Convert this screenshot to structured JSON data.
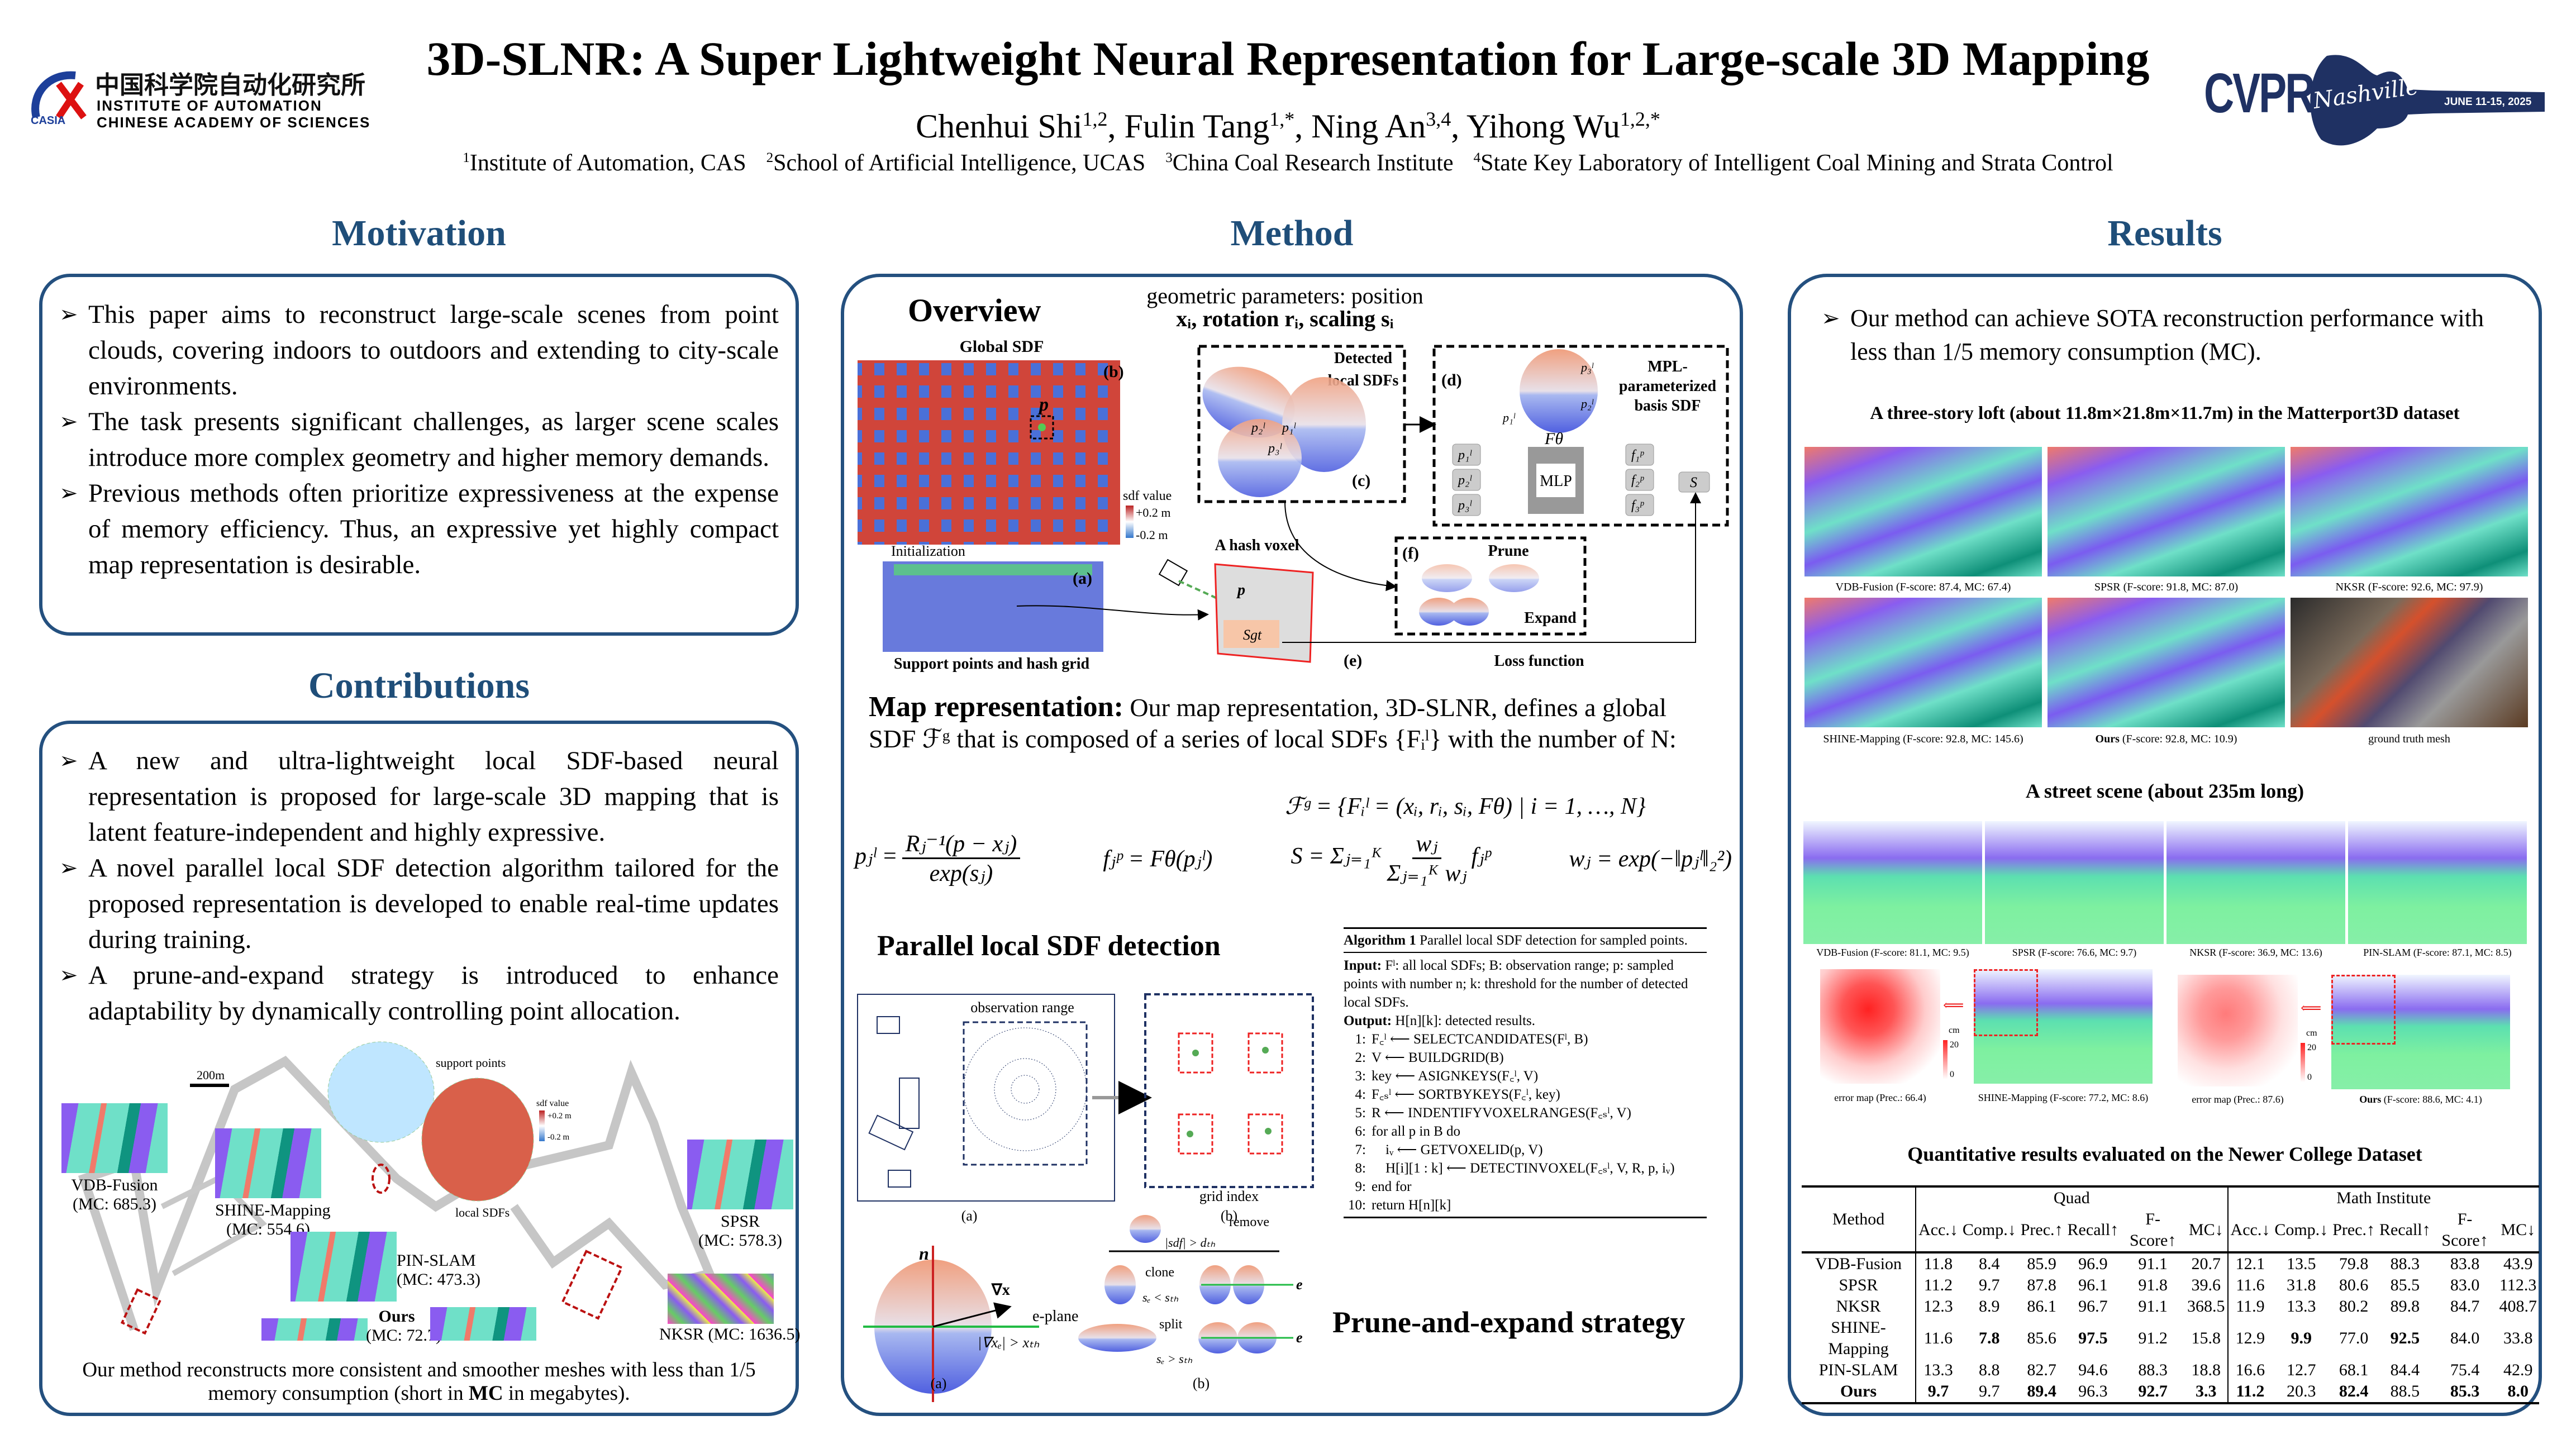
{
  "header": {
    "title": "3D-SLNR: A Super Lightweight Neural Representation for Large-scale 3D Mapping",
    "authors": [
      {
        "name": "Chenhui Shi",
        "sup": "1,2",
        "sep": ", "
      },
      {
        "name": "Fulin Tang",
        "sup": "1,*",
        "sep": ", "
      },
      {
        "name": "Ning An",
        "sup": "3,4",
        "sep": ", "
      },
      {
        "name": "Yihong Wu",
        "sup": "1,2,*",
        "sep": ""
      }
    ],
    "affiliations": [
      {
        "sup": "1",
        "text": "Institute of Automation, CAS"
      },
      {
        "sup": "2",
        "text": "School of Artificial Intelligence, UCAS"
      },
      {
        "sup": "3",
        "text": "China Coal Research Institute"
      },
      {
        "sup": "4",
        "text": "State Key Laboratory of Intelligent Coal Mining and Strata Control"
      }
    ],
    "casia_logo": {
      "cn": "中国科学院自动化研究所",
      "en1": "INSTITUTE OF AUTOMATION",
      "en2": "CHINESE ACADEMY OF SCIENCES",
      "mark": "CASIA"
    },
    "cvpr_logo": {
      "word": "CVPR",
      "script": "Nashville",
      "date": "JUNE 11-15, 2025"
    }
  },
  "motivation": {
    "heading": "Motivation",
    "bullets": [
      "This paper aims to reconstruct large-scale scenes from point clouds, covering indoors to outdoors and extending to city-scale environments.",
      "The task presents significant challenges, as larger scene scales introduce more complex geometry and higher memory demands.",
      "Previous methods often prioritize expressiveness at the expense of memory efficiency. Thus, an expressive yet highly compact map representation is desirable."
    ]
  },
  "contributions": {
    "heading": "Contributions",
    "bullets": [
      "A new and ultra-lightweight local SDF-based neural representation is proposed for large-scale 3D mapping that is latent feature-independent and highly expressive.",
      "A novel parallel local SDF detection algorithm tailored for the proposed representation is developed to enable real-time updates during training.",
      "A prune-and-expand strategy is introduced to enhance adaptability by dynamically controlling point allocation."
    ],
    "figure": {
      "scale": "200m",
      "support_points": "support points",
      "local_sdfs": "local SDFs",
      "sdf_value": "sdf value",
      "sdf_max": "+0.2 m",
      "sdf_min": "-0.2 m",
      "insets": [
        {
          "name": "VDB-Fusion",
          "mc": "(MC: 685.3)"
        },
        {
          "name": "SHINE-Mapping",
          "mc": "(MC: 554.6)"
        },
        {
          "name": "PIN-SLAM",
          "mc": "(MC: 473.3)"
        },
        {
          "name": "Ours",
          "mc": "(MC: 72.7)"
        },
        {
          "name": "SPSR",
          "mc": "(MC: 578.3)"
        },
        {
          "name": "NKSR",
          "mc": "(MC: 1636.5)"
        }
      ]
    },
    "caption_pre": "Our method reconstructs more consistent and smoother meshes with less than 1/5 memory consumption (short in ",
    "caption_bold": "MC",
    "caption_post": " in megabytes)."
  },
  "method": {
    "heading": "Method",
    "overview": {
      "title": "Overview",
      "params_line1": "geometric parameters: position",
      "params_line2": "xᵢ, rotation rᵢ, scaling sᵢ",
      "global_sdf": "Global SDF",
      "b": "(b)",
      "a": "(a)",
      "c": "(c)",
      "d": "(d)",
      "e": "(e)",
      "f": "(f)",
      "p": "p",
      "detected1": "Detected",
      "detected2": "local SDFs",
      "mpl1": "MPL-",
      "mpl2": "parameterized",
      "mpl3": "basis SDF",
      "p1": "p₁ˡ",
      "p2": "p₂ˡ",
      "p3": "p₃ˡ",
      "f1": "f₁ᵖ",
      "f2": "f₂ᵖ",
      "f3": "f₃ᵖ",
      "ftheta": "Fθ",
      "mlp": "MLP",
      "s": "S",
      "sgt": "Sgt",
      "sdf_value": "sdf value",
      "sdf_max": "+0.2 m",
      "sdf_min": "-0.2 m",
      "hash_voxel": "A hash voxel",
      "initialization": "Initialization",
      "support": "Support points and hash grid",
      "prune": "Prune",
      "expand": "Expand",
      "loss": "Loss function"
    },
    "map_rep": {
      "label": "Map representation:",
      "text": " Our map representation, 3D-SLNR, defines a global SDF ℱᵍ that is composed of a series of local SDFs {Fᵢˡ} with the number of N:",
      "eq_main": "ℱᵍ = {Fᵢˡ = (xᵢ, rᵢ, sᵢ, Fθ) | i = 1, …, N}",
      "eq_p_lhs": "pⱼˡ =",
      "eq_p_num": "Rⱼ⁻¹(p − xⱼ)",
      "eq_p_den": "exp(sⱼ)",
      "eq_f": "fⱼᵖ = Fθ(pⱼˡ)",
      "eq_s_lhs": "S = Σⱼ₌₁ᴷ",
      "eq_s_num": "wⱼ",
      "eq_s_den": "Σⱼ₌₁ᴷ wⱼ",
      "eq_s_tail": "fⱼᵖ",
      "eq_w": "wⱼ = exp(−‖pⱼˡ‖₂²)"
    },
    "parallel": {
      "title": "Parallel local SDF detection",
      "obs_range": "observation range",
      "grid_index": "grid index",
      "a": "(a)",
      "b": "(b)"
    },
    "algorithm": {
      "title_bold": "Algorithm 1",
      "title": " Parallel local SDF detection for sampled points.",
      "input_label": "Input:",
      "input": " Fˡ: all local SDFs; B: observation range; p: sampled points with number n; k: threshold for the number of detected local SDFs.",
      "output_label": "Output:",
      "output": " H[n][k]: detected results.",
      "lines": [
        {
          "n": "1:",
          "t": "F꜀ˡ ⟵ SELECTCANDIDATES(Fˡ, B)"
        },
        {
          "n": "2:",
          "t": "V ⟵ BUILDGRID(B)"
        },
        {
          "n": "3:",
          "t": "key ⟵ ASIGNKEYS(F꜀ˡ, V)"
        },
        {
          "n": "4:",
          "t": "F꜀ₛˡ ⟵ SORTBYKEYS(F꜀ˡ, key)"
        },
        {
          "n": "5:",
          "t": "R ⟵ INDENTIFYVOXELRANGES(F꜀ₛˡ, V)"
        },
        {
          "n": "6:",
          "t": "for all p in B do"
        },
        {
          "n": "7:",
          "t": "    iᵥ ⟵ GETVOXELID(p, V)"
        },
        {
          "n": "8:",
          "t": "    H[i][1 : k] ⟵ DETECTINVOXEL(F꜀ₛˡ, V, R, p, iᵥ)"
        },
        {
          "n": "9:",
          "t": "end for"
        },
        {
          "n": "10:",
          "t": "return H[n][k]"
        }
      ]
    },
    "prune": {
      "title": "Prune-and-expand strategy",
      "n": "n",
      "grad_x": "∇x",
      "e_plane": "e-plane",
      "grad_cond": "|∇xₑ| > xₜₕ",
      "remove": "remove",
      "sdf_cond": "|sdf| > dₜₕ",
      "clone": "clone",
      "clone_cond": "sₑ < sₜₕ",
      "split": "split",
      "split_cond": "sₑ > sₜₕ",
      "e": "e",
      "a": "(a)",
      "b": "(b)"
    }
  },
  "results": {
    "heading": "Results",
    "bullet": "Our method can achieve SOTA reconstruction performance with less than 1/5 memory consumption (MC).",
    "matterport": {
      "caption": "A three-story loft (about 11.8m×21.8m×11.7m) in the Matterport3D dataset",
      "images": [
        {
          "label": "VDB-Fusion",
          "detail": " (F-score: 87.4, MC: 67.4)"
        },
        {
          "label": "SPSR",
          "detail": " (F-score: 91.8, MC: 87.0)"
        },
        {
          "label": "NKSR",
          "detail": " (F-score: 92.6, MC: 97.9)"
        },
        {
          "label": "SHINE-Mapping",
          "detail": " (F-score: 92.8, MC: 145.6)"
        },
        {
          "label": "Ours",
          "detail": " (F-score: 92.8, MC: 10.9)"
        },
        {
          "label": "ground truth mesh",
          "detail": ""
        }
      ]
    },
    "street": {
      "caption": "A street scene (about 235m long)",
      "row1": [
        "VDB-Fusion (F-score: 81.1, MC: 9.5)",
        "SPSR (F-score: 76.6, MC: 9.7)",
        "NKSR (F-score: 36.9, MC: 13.6)",
        "PIN-SLAM (F-score: 87.1, MC: 8.5)"
      ],
      "row2": [
        {
          "label": "error map (Prec.: 66.4)",
          "bold": ""
        },
        {
          "label": " (F-score: 77.2, MC: 8.6)",
          "bold": "SHINE-Mapping"
        },
        {
          "label": "error map (Prec.: 87.6)",
          "bold": ""
        },
        {
          "label": " (F-score: 88.6, MC: 4.1)",
          "bold": "Ours"
        }
      ],
      "unit": "cm",
      "scale_max": "20",
      "scale_min": "0"
    },
    "table": {
      "title": "Quantitative results evaluated on the Newer College Dataset",
      "method_header": "Method",
      "groups": [
        "Quad",
        "Math Institute"
      ],
      "columns": [
        "Acc.↓",
        "Comp.↓",
        "Prec.↑",
        "Recall↑",
        "F-Score↑",
        "MC↓",
        "Acc.↓",
        "Comp.↓",
        "Prec.↑",
        "Recall↑",
        "F-Score↑",
        "MC↓"
      ],
      "rows": [
        {
          "method": "VDB-Fusion",
          "values": [
            "11.8",
            "8.4",
            "85.9",
            "96.9",
            "91.1",
            "20.7",
            "12.1",
            "13.5",
            "79.8",
            "88.3",
            "83.8",
            "43.9"
          ],
          "bold": []
        },
        {
          "method": "SPSR",
          "values": [
            "11.2",
            "9.7",
            "87.8",
            "96.1",
            "91.8",
            "39.6",
            "11.6",
            "31.8",
            "80.6",
            "85.5",
            "83.0",
            "112.3"
          ],
          "bold": []
        },
        {
          "method": "NKSR",
          "values": [
            "12.3",
            "8.9",
            "86.1",
            "96.7",
            "91.1",
            "368.5",
            "11.9",
            "13.3",
            "80.2",
            "89.8",
            "84.7",
            "408.7"
          ],
          "bold": []
        },
        {
          "method": "SHINE-Mapping",
          "values": [
            "11.6",
            "7.8",
            "85.6",
            "97.5",
            "91.2",
            "15.8",
            "12.9",
            "9.9",
            "77.0",
            "92.5",
            "84.0",
            "33.8"
          ],
          "bold": [
            1,
            3,
            7,
            9
          ]
        },
        {
          "method": "PIN-SLAM",
          "values": [
            "13.3",
            "8.8",
            "82.7",
            "94.6",
            "88.3",
            "18.8",
            "16.6",
            "12.7",
            "68.1",
            "84.4",
            "75.4",
            "42.9"
          ],
          "bold": []
        },
        {
          "method": "Ours",
          "values": [
            "9.7",
            "9.7",
            "89.4",
            "96.3",
            "92.7",
            "3.3",
            "11.2",
            "20.3",
            "82.4",
            "88.5",
            "85.3",
            "8.0"
          ],
          "bold": [
            0,
            2,
            4,
            5,
            6,
            8,
            10,
            11
          ],
          "method_bold": true
        }
      ]
    }
  }
}
